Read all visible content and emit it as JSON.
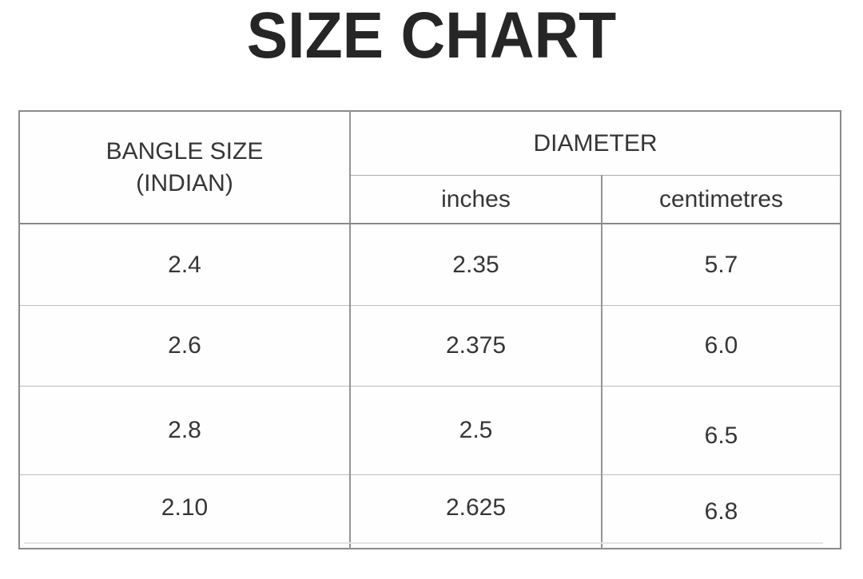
{
  "title": "SIZE CHART",
  "table": {
    "header": {
      "bangle_line1": "BANGLE SIZE",
      "bangle_line2": "(INDIAN)",
      "diameter": "DIAMETER",
      "inches": "inches",
      "centimetres": "centimetres"
    },
    "rows": [
      {
        "bangle_size": "2.4",
        "inches": "2.35",
        "centimetres": "5.7"
      },
      {
        "bangle_size": "2.6",
        "inches": "2.375",
        "centimetres": "6.0"
      },
      {
        "bangle_size": "2.8",
        "inches": "2.5",
        "centimetres": "6.5"
      },
      {
        "bangle_size": "2.10",
        "inches": "2.625",
        "centimetres": "6.8"
      }
    ]
  },
  "colors": {
    "background": "#ffffff",
    "text": "#303030",
    "border_dark": "#8a8a8a",
    "border_light": "#bdbdbd"
  },
  "chart_data": {
    "type": "table",
    "title": "SIZE CHART",
    "columns": [
      "BANGLE SIZE (INDIAN)",
      "DIAMETER inches",
      "DIAMETER centimetres"
    ],
    "rows": [
      [
        "2.4",
        "2.35",
        "5.7"
      ],
      [
        "2.6",
        "2.375",
        "6.0"
      ],
      [
        "2.8",
        "2.5",
        "6.5"
      ],
      [
        "2.10",
        "2.625",
        "6.8"
      ]
    ]
  }
}
